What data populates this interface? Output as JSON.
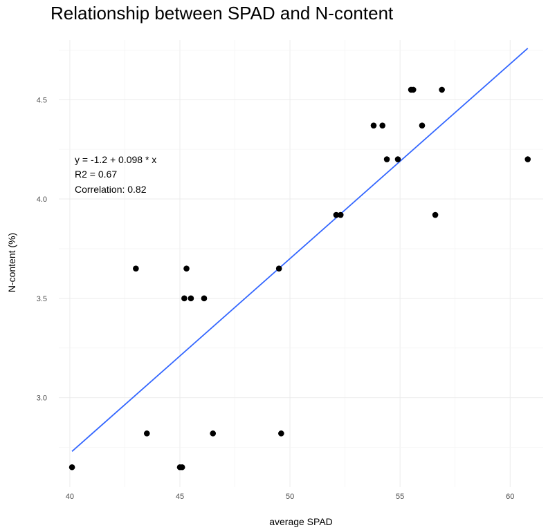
{
  "chart_data": {
    "type": "scatter",
    "title": "Relationship between SPAD and N-content",
    "xlabel": "average SPAD",
    "ylabel": "N-content (%)",
    "xlim": [
      39.5,
      61.5
    ],
    "ylim": [
      2.55,
      4.8
    ],
    "x_ticks": [
      40,
      45,
      50,
      55,
      60
    ],
    "y_ticks": [
      3.0,
      3.5,
      4.0,
      4.5
    ],
    "x_tick_labels": [
      "40",
      "45",
      "50",
      "55",
      "60"
    ],
    "y_tick_labels": [
      "3.0",
      "3.5",
      "4.0",
      "4.5"
    ],
    "grid": true,
    "point_color": "#000000",
    "points": [
      {
        "x": 40.1,
        "y": 2.65
      },
      {
        "x": 43.0,
        "y": 3.65
      },
      {
        "x": 43.5,
        "y": 2.82
      },
      {
        "x": 45.0,
        "y": 2.65
      },
      {
        "x": 45.1,
        "y": 2.65
      },
      {
        "x": 45.2,
        "y": 3.5
      },
      {
        "x": 45.3,
        "y": 3.65
      },
      {
        "x": 45.5,
        "y": 3.5
      },
      {
        "x": 46.1,
        "y": 3.5
      },
      {
        "x": 46.5,
        "y": 2.82
      },
      {
        "x": 49.5,
        "y": 3.65
      },
      {
        "x": 49.6,
        "y": 2.82
      },
      {
        "x": 52.1,
        "y": 3.92
      },
      {
        "x": 52.3,
        "y": 3.92
      },
      {
        "x": 53.8,
        "y": 4.37
      },
      {
        "x": 54.2,
        "y": 4.37
      },
      {
        "x": 54.4,
        "y": 4.2
      },
      {
        "x": 54.9,
        "y": 4.2
      },
      {
        "x": 55.5,
        "y": 4.55
      },
      {
        "x": 55.6,
        "y": 4.55
      },
      {
        "x": 56.0,
        "y": 4.37
      },
      {
        "x": 56.6,
        "y": 3.92
      },
      {
        "x": 56.9,
        "y": 4.55
      },
      {
        "x": 60.8,
        "y": 4.2
      }
    ],
    "trendline": {
      "color": "#3366ff",
      "intercept": -1.2,
      "slope": 0.098,
      "x_range": [
        40.1,
        60.8
      ]
    },
    "annotations": [
      "y = -1.2 + 0.098 * x",
      "R2 = 0.67",
      "Correlation: 0.82"
    ]
  }
}
